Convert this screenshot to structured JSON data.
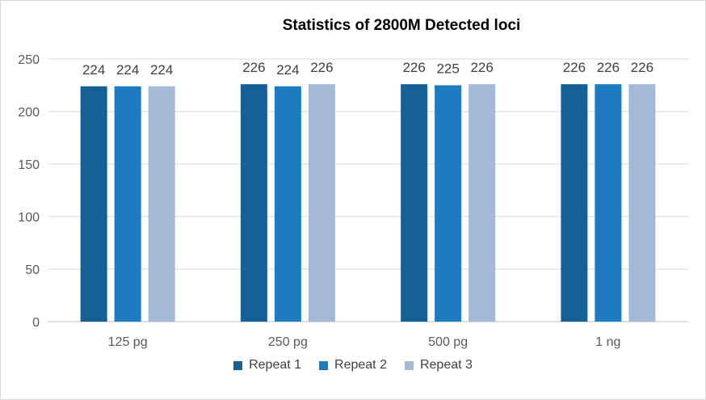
{
  "chart_data": {
    "type": "bar",
    "title": "Statistics of 2800M Detected loci",
    "categories": [
      "125 pg",
      "250 pg",
      "500 pg",
      "1 ng"
    ],
    "series": [
      {
        "name": "Repeat 1",
        "values": [
          224,
          226,
          226,
          226
        ],
        "color": "#156196"
      },
      {
        "name": "Repeat 2",
        "values": [
          224,
          224,
          225,
          226
        ],
        "color": "#1d7bbf"
      },
      {
        "name": "Repeat 3",
        "values": [
          224,
          226,
          226,
          226
        ],
        "color": "#a3b9d6"
      }
    ],
    "ylim": [
      0,
      250
    ],
    "yticks": [
      0,
      50,
      100,
      150,
      200,
      250
    ],
    "grid": true,
    "legend_position": "bottom"
  }
}
